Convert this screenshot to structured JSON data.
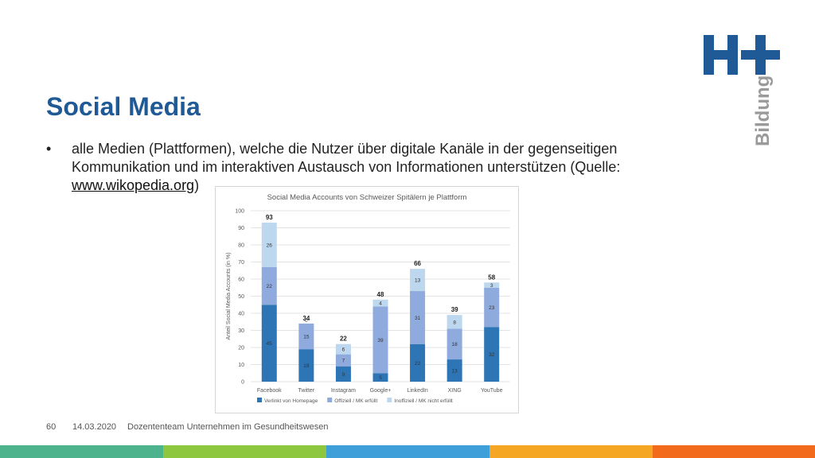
{
  "slide": {
    "title": "Social Media",
    "bullet_symbol": "•",
    "bullet_text_before": "alle Medien (Plattformen), welche die Nutzer über digitale Kanäle in der gegenseitigen Kommunikation und im interaktiven Austausch von Informationen unterstützen (Quelle: ",
    "bullet_link": "www.wikopedia.org",
    "bullet_text_after": ")"
  },
  "logo": {
    "mark": "H+",
    "word": "Bildung"
  },
  "footer": {
    "page_number": "60",
    "date": "14.03.2020",
    "text": "Dozententeam Unternehmen im Gesundheitswesen"
  },
  "colors": {
    "title": "#1f5a96",
    "logo": "#1f5a96",
    "logo_word": "#9a9a9a",
    "series": [
      "#2e75b6",
      "#8faadc",
      "#bdd7ee"
    ],
    "bottom_bar": [
      "#4db38c",
      "#8dc63f",
      "#3f9fd8",
      "#f5a623",
      "#f26b1d"
    ]
  },
  "chart_data": {
    "type": "bar",
    "stacked": true,
    "title": "Social Media Accounts von Schweizer Spitälern je Plattform",
    "ylabel": "Anteil Social Media Accounts (in %)",
    "xlabel": "",
    "ylim": [
      0,
      100
    ],
    "yticks": [
      0,
      10,
      20,
      30,
      40,
      50,
      60,
      70,
      80,
      90,
      100
    ],
    "grid": true,
    "legend_position": "bottom",
    "categories": [
      "Facebook",
      "Twitter",
      "Instagram",
      "Google+",
      "LinkedIn",
      "XING",
      "YouTube"
    ],
    "series": [
      {
        "name": "Verlinkt von Homepage",
        "values": [
          45,
          19,
          9,
          5,
          22,
          13,
          32
        ]
      },
      {
        "name": "Offiziell / MK erfüllt",
        "values": [
          22,
          15,
          7,
          39,
          31,
          18,
          23
        ]
      },
      {
        "name": "Inoffiziell / MK nicht erfüllt",
        "values": [
          26,
          0,
          6,
          4,
          13,
          8,
          3
        ]
      }
    ],
    "totals": [
      93,
      34,
      22,
      48,
      66,
      39,
      58
    ]
  }
}
